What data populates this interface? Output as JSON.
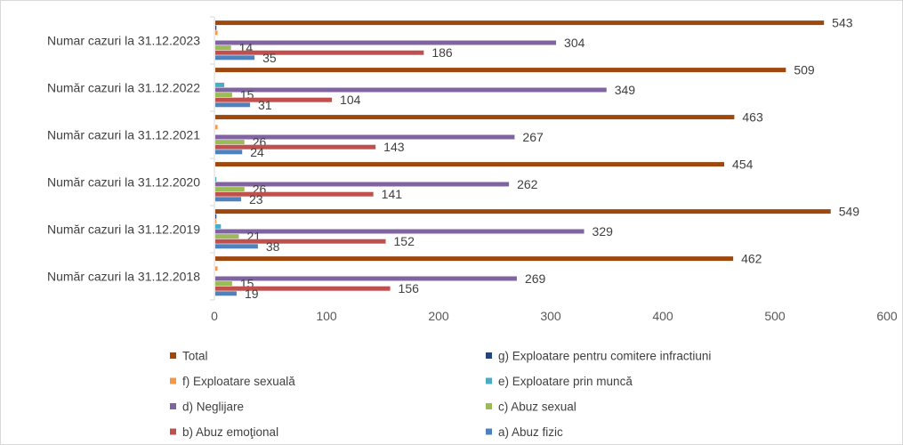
{
  "chart_data": {
    "type": "bar",
    "orientation": "horizontal",
    "categories": [
      "Numar cazuri la 31.12.2023",
      "Număr cazuri la 31.12.2022",
      "Număr cazuri la 31.12.2021",
      "Număr cazuri la 31.12.2020",
      "Număr cazuri la 31.12.2019",
      "Număr cazuri la 31.12.2018"
    ],
    "xlim": [
      0,
      600
    ],
    "xticks": [
      "0",
      "100",
      "200",
      "300",
      "400",
      "500",
      "600"
    ],
    "grid": false,
    "legend_position": "bottom",
    "series": [
      {
        "name": "Total",
        "color": "#9E480E",
        "values": [
          543,
          509,
          463,
          454,
          549,
          462
        ],
        "labels": [
          "543",
          "509",
          "463",
          "454",
          "549",
          "462"
        ]
      },
      {
        "name": "g) Exploatare pentru comitere infractiuni",
        "color": "#264478",
        "values": [
          1,
          0,
          0,
          0,
          1,
          0
        ],
        "labels": [
          "",
          "",
          "",
          "",
          "",
          ""
        ]
      },
      {
        "name": " f) Exploatare sexuală",
        "color": "#F79646",
        "values": [
          2,
          0,
          2,
          0,
          1,
          2
        ],
        "labels": [
          "",
          "",
          "",
          "",
          "",
          ""
        ]
      },
      {
        "name": "e) Exploatare prin muncă",
        "color": "#4BACC6",
        "values": [
          0,
          8,
          0,
          1,
          5,
          0
        ],
        "labels": [
          "",
          "",
          "",
          "",
          "",
          ""
        ]
      },
      {
        "name": "d) Neglijare",
        "color": "#8064A2",
        "values": [
          304,
          349,
          267,
          262,
          329,
          269
        ],
        "labels": [
          "304",
          "349",
          "267",
          "262",
          "329",
          "269"
        ]
      },
      {
        "name": "c) Abuz sexual",
        "color": "#9BBB59",
        "values": [
          14,
          15,
          26,
          26,
          21,
          15
        ],
        "labels": [
          "14",
          "15",
          "26",
          "26",
          "21",
          "15"
        ]
      },
      {
        "name": "b) Abuz emoţional",
        "color": "#C0504D",
        "values": [
          186,
          104,
          143,
          141,
          152,
          156
        ],
        "labels": [
          "186",
          "104",
          "143",
          "141",
          "152",
          "156"
        ]
      },
      {
        "name": "a) Abuz  fizic",
        "color": "#4F81BD",
        "values": [
          35,
          31,
          24,
          23,
          38,
          19
        ],
        "labels": [
          "35",
          "31",
          "24",
          "23",
          "38",
          "19"
        ]
      }
    ]
  }
}
